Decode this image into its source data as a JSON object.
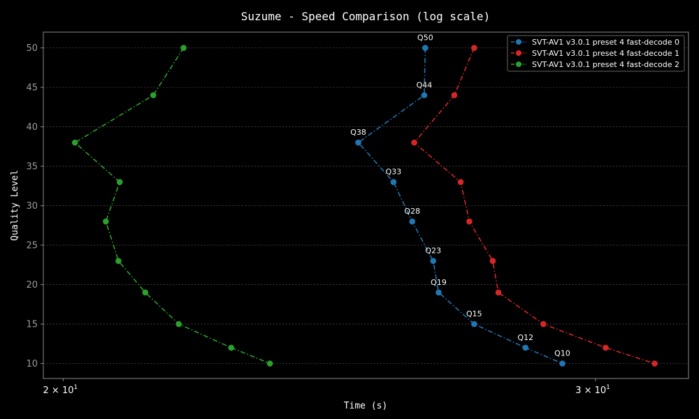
{
  "chart_data": {
    "type": "line",
    "title": "Suzume - Speed Comparison (log scale)",
    "xlabel": "Time (s)",
    "ylabel": "Quality Level",
    "x_scale": "log",
    "xlim": [
      19.7,
      32.2
    ],
    "ylim": [
      8.1,
      52.0
    ],
    "x_ticks": [
      {
        "value": 20,
        "label": "2 × 10",
        "exp": "1"
      },
      {
        "value": 30,
        "label": "3 × 10",
        "exp": "1"
      }
    ],
    "y_ticks": [
      10,
      15,
      20,
      25,
      30,
      35,
      40,
      45,
      50
    ],
    "grid": true,
    "legend_position": "top-right",
    "series": [
      {
        "name": "SVT-AV1 v3.0.1 preset 4 fast-decode 0",
        "color": "#1f77b4",
        "points": [
          {
            "q": 50,
            "x": 26.35
          },
          {
            "q": 44,
            "x": 26.33
          },
          {
            "q": 38,
            "x": 25.04
          },
          {
            "q": 33,
            "x": 25.72
          },
          {
            "q": 28,
            "x": 26.09
          },
          {
            "q": 23,
            "x": 26.51
          },
          {
            "q": 19,
            "x": 26.62
          },
          {
            "q": 15,
            "x": 27.35
          },
          {
            "q": 12,
            "x": 28.44
          },
          {
            "q": 10,
            "x": 29.25
          }
        ],
        "point_labels": [
          "Q50",
          "Q44",
          "Q38",
          "Q33",
          "Q28",
          "Q23",
          "Q19",
          "Q15",
          "Q12",
          "Q10"
        ]
      },
      {
        "name": "SVT-AV1 v3.0.1 preset 4 fast-decode 1",
        "color": "#d62728",
        "points": [
          {
            "q": 50,
            "x": 27.35
          },
          {
            "q": 44,
            "x": 26.94
          },
          {
            "q": 38,
            "x": 26.13
          },
          {
            "q": 33,
            "x": 27.07
          },
          {
            "q": 28,
            "x": 27.25
          },
          {
            "q": 23,
            "x": 27.74
          },
          {
            "q": 19,
            "x": 27.86
          },
          {
            "q": 15,
            "x": 28.83
          },
          {
            "q": 12,
            "x": 30.23
          },
          {
            "q": 10,
            "x": 31.38
          }
        ]
      },
      {
        "name": "SVT-AV1 v3.0.1 preset 4 fast-decode 2",
        "color": "#2ca02c",
        "points": [
          {
            "q": 50,
            "x": 21.92
          },
          {
            "q": 44,
            "x": 21.42
          },
          {
            "q": 38,
            "x": 20.18
          },
          {
            "q": 33,
            "x": 20.88
          },
          {
            "q": 28,
            "x": 20.66
          },
          {
            "q": 23,
            "x": 20.86
          },
          {
            "q": 19,
            "x": 21.29
          },
          {
            "q": 15,
            "x": 21.84
          },
          {
            "q": 12,
            "x": 22.73
          },
          {
            "q": 10,
            "x": 23.41
          }
        ]
      }
    ]
  }
}
